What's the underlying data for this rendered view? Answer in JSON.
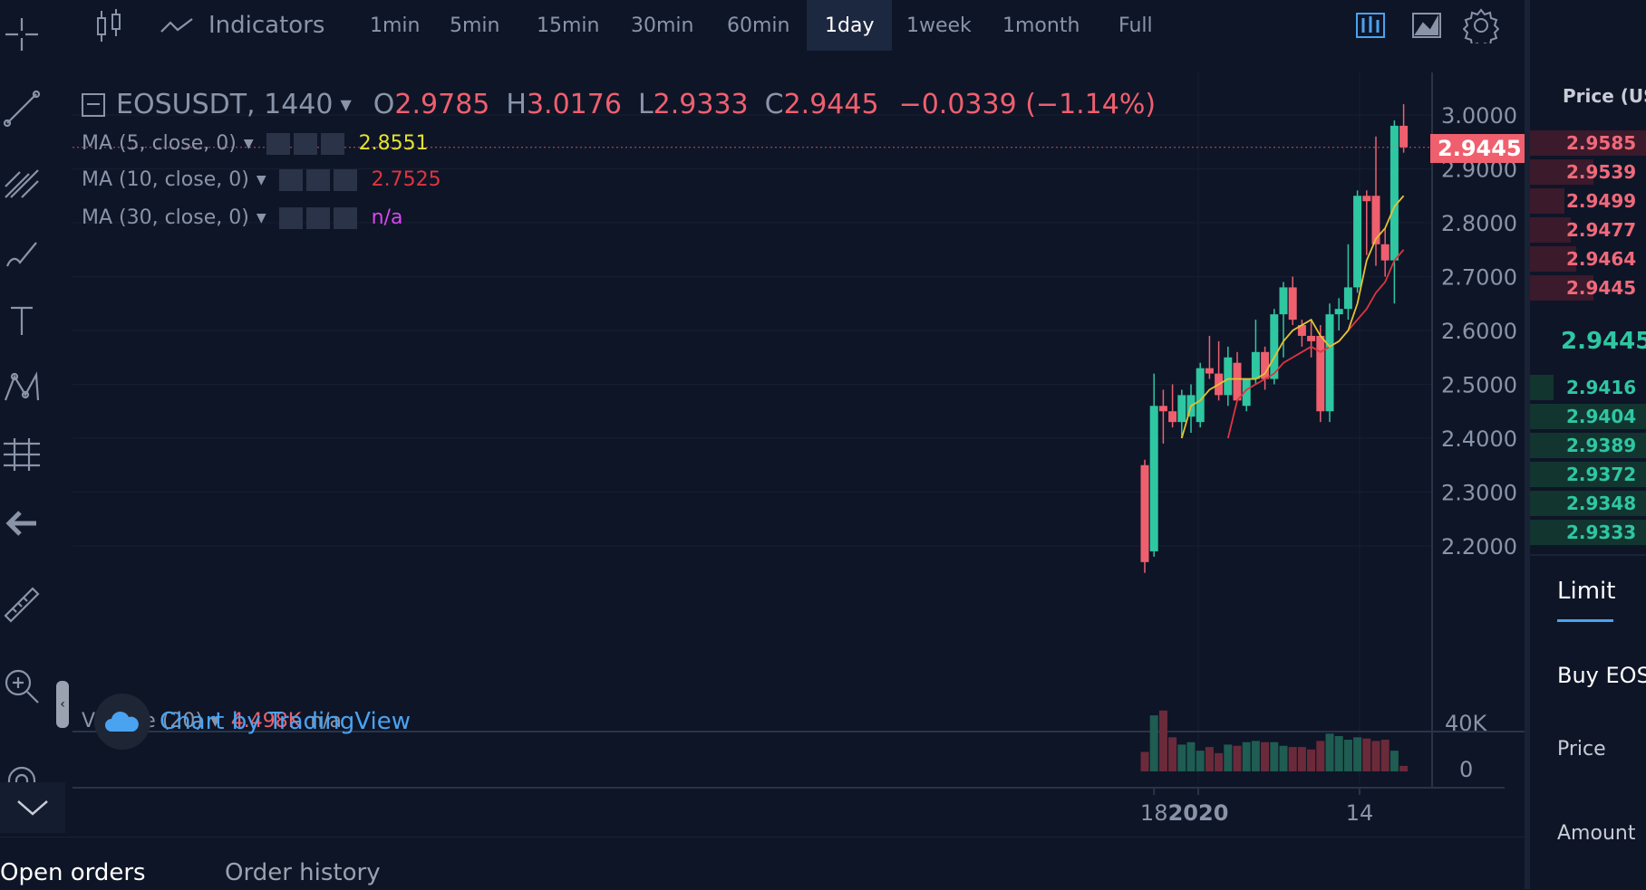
{
  "toolbar": {
    "indicators_label": "Indicators",
    "intervals": [
      "1min",
      "5min",
      "15min",
      "30min",
      "60min",
      "1day",
      "1week",
      "1month",
      "Full"
    ],
    "active_interval": "1day"
  },
  "legend": {
    "symbol": "EOSUSDT, 1440",
    "open_label": "O",
    "open": "2.9785",
    "high_label": "H",
    "high": "3.0176",
    "low_label": "L",
    "low": "2.9333",
    "close_label": "C",
    "close": "2.9445",
    "change": "−0.0339 (−1.14%)",
    "ma5_label": "MA (5, close, 0)",
    "ma5_value": "2.8551",
    "ma10_label": "MA (10, close, 0)",
    "ma10_value": "2.7525",
    "ma30_label": "MA (30, close, 0)",
    "ma30_value": "n/a",
    "volume_label": "Volume (20)",
    "volume_value": "4.498K",
    "volume_ma": "n/a",
    "watermark": "Chart by TradingView"
  },
  "price_axis": {
    "ticks": [
      "3.0000",
      "2.9000",
      "2.8000",
      "2.7000",
      "2.6000",
      "2.5000",
      "2.4000",
      "2.3000",
      "2.2000"
    ],
    "last_price_tag": "2.9445"
  },
  "volume_axis": {
    "ticks": [
      "40K",
      "0"
    ]
  },
  "time_axis": {
    "ticks": [
      "18",
      "2020",
      "14"
    ]
  },
  "colors": {
    "background": "#0e1527",
    "up": "#26a69a",
    "up_bright": "#2ec7a2",
    "down": "#ef5f6e",
    "ma5": "#e4c230",
    "ma10": "#e0343e",
    "ma30": "#d946ef",
    "accent": "#4aa3f0"
  },
  "order_book": {
    "header": "Price (USDT)",
    "asks": [
      "2.9585",
      "2.9539",
      "2.9499",
      "2.9477",
      "2.9464",
      "2.9445"
    ],
    "ask_depth": [
      1.0,
      0.55,
      0.3,
      0.35,
      0.4,
      0.55
    ],
    "last_price": "2.9445",
    "bids": [
      "2.9416",
      "2.9404",
      "2.9389",
      "2.9372",
      "2.9348",
      "2.9333"
    ],
    "bid_depth": [
      0.2,
      1.0,
      1.0,
      1.0,
      1.0,
      1.0
    ]
  },
  "trade_panel": {
    "tab_limit": "Limit",
    "buy_label": "Buy EOS",
    "price_label": "Price",
    "amount_label": "Amount"
  },
  "bottom_tabs": {
    "open_orders": "Open orders",
    "order_history": "Order history"
  },
  "chart_data": {
    "type": "candlestick",
    "symbol": "EOSUSDT",
    "interval": "1440",
    "ylim": [
      2.12,
      3.05
    ],
    "volume_ylim": [
      0,
      55000
    ],
    "time_ticks": [
      "18",
      "2020",
      "14"
    ],
    "candles": [
      {
        "o": 2.35,
        "h": 2.36,
        "l": 2.15,
        "c": 2.17,
        "v": 16000
      },
      {
        "o": 2.19,
        "h": 2.52,
        "l": 2.18,
        "c": 2.46,
        "v": 46000
      },
      {
        "o": 2.46,
        "h": 2.49,
        "l": 2.39,
        "c": 2.45,
        "v": 50000
      },
      {
        "o": 2.45,
        "h": 2.5,
        "l": 2.42,
        "c": 2.43,
        "v": 28000
      },
      {
        "o": 2.43,
        "h": 2.49,
        "l": 2.4,
        "c": 2.48,
        "v": 22000
      },
      {
        "o": 2.44,
        "h": 2.5,
        "l": 2.41,
        "c": 2.48,
        "v": 24000
      },
      {
        "o": 2.43,
        "h": 2.54,
        "l": 2.42,
        "c": 2.53,
        "v": 17000
      },
      {
        "o": 2.53,
        "h": 2.59,
        "l": 2.51,
        "c": 2.52,
        "v": 20000
      },
      {
        "o": 2.52,
        "h": 2.58,
        "l": 2.47,
        "c": 2.48,
        "v": 15000
      },
      {
        "o": 2.48,
        "h": 2.57,
        "l": 2.46,
        "c": 2.55,
        "v": 22000
      },
      {
        "o": 2.54,
        "h": 2.56,
        "l": 2.47,
        "c": 2.47,
        "v": 21000
      },
      {
        "o": 2.46,
        "h": 2.51,
        "l": 2.45,
        "c": 2.51,
        "v": 24000
      },
      {
        "o": 2.51,
        "h": 2.62,
        "l": 2.5,
        "c": 2.56,
        "v": 25000
      },
      {
        "o": 2.56,
        "h": 2.57,
        "l": 2.49,
        "c": 2.51,
        "v": 24000
      },
      {
        "o": 2.51,
        "h": 2.64,
        "l": 2.5,
        "c": 2.63,
        "v": 24000
      },
      {
        "o": 2.63,
        "h": 2.69,
        "l": 2.55,
        "c": 2.68,
        "v": 21000
      },
      {
        "o": 2.68,
        "h": 2.7,
        "l": 2.61,
        "c": 2.62,
        "v": 20000
      },
      {
        "o": 2.61,
        "h": 2.62,
        "l": 2.57,
        "c": 2.59,
        "v": 20000
      },
      {
        "o": 2.59,
        "h": 2.62,
        "l": 2.55,
        "c": 2.58,
        "v": 18000
      },
      {
        "o": 2.59,
        "h": 2.61,
        "l": 2.43,
        "c": 2.45,
        "v": 25000
      },
      {
        "o": 2.45,
        "h": 2.65,
        "l": 2.43,
        "c": 2.63,
        "v": 31000
      },
      {
        "o": 2.63,
        "h": 2.66,
        "l": 2.6,
        "c": 2.64,
        "v": 29000
      },
      {
        "o": 2.64,
        "h": 2.76,
        "l": 2.62,
        "c": 2.68,
        "v": 26000
      },
      {
        "o": 2.68,
        "h": 2.86,
        "l": 2.67,
        "c": 2.85,
        "v": 28000
      },
      {
        "o": 2.85,
        "h": 2.86,
        "l": 2.74,
        "c": 2.84,
        "v": 27000
      },
      {
        "o": 2.85,
        "h": 2.96,
        "l": 2.72,
        "c": 2.76,
        "v": 25000
      },
      {
        "o": 2.76,
        "h": 2.79,
        "l": 2.7,
        "c": 2.73,
        "v": 26000
      },
      {
        "o": 2.73,
        "h": 2.99,
        "l": 2.65,
        "c": 2.98,
        "v": 17000
      },
      {
        "o": 2.98,
        "h": 3.02,
        "l": 2.93,
        "c": 2.94,
        "v": 4500
      }
    ],
    "ma5": [
      null,
      null,
      null,
      null,
      2.4,
      2.46,
      2.47,
      2.49,
      2.5,
      2.51,
      2.51,
      2.51,
      2.51,
      2.52,
      2.55,
      2.58,
      2.6,
      2.61,
      2.62,
      2.59,
      2.57,
      2.58,
      2.6,
      2.65,
      2.73,
      2.77,
      2.79,
      2.83,
      2.85
    ],
    "ma10": [
      null,
      null,
      null,
      null,
      null,
      null,
      null,
      null,
      null,
      2.4,
      2.47,
      2.49,
      2.5,
      2.51,
      2.52,
      2.54,
      2.55,
      2.56,
      2.57,
      2.56,
      2.57,
      2.58,
      2.6,
      2.62,
      2.64,
      2.67,
      2.69,
      2.73,
      2.75
    ]
  }
}
